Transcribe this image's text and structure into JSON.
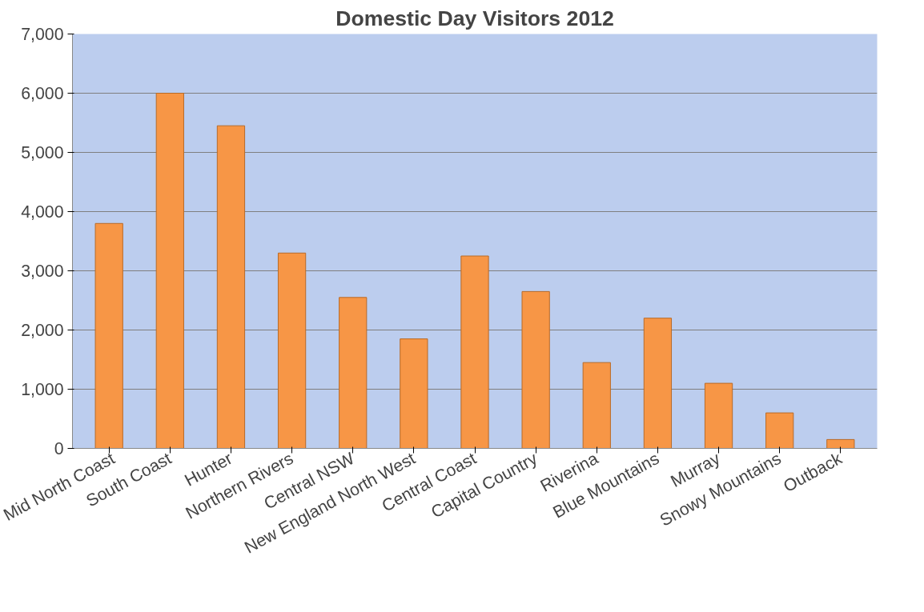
{
  "chart_data": {
    "type": "bar",
    "title": "Domestic Day Visitors 2012",
    "categories": [
      "Mid North Coast",
      "South Coast",
      "Hunter",
      "Northern Rivers",
      "Central NSW",
      "New England North West",
      "Central Coast",
      "Capital Country",
      "Riverina",
      "Blue Mountains",
      "Murray",
      "Snowy Mountains",
      "Outback"
    ],
    "values": [
      3800,
      6000,
      5450,
      3300,
      2550,
      1850,
      3250,
      2650,
      1450,
      2200,
      1100,
      600,
      150
    ],
    "color": "#f79646",
    "ylim": [
      0,
      7000
    ],
    "yticks": [
      0,
      {
        "value": 1000,
        "label": "1,000"
      },
      {
        "value": 2000,
        "label": "2,000"
      },
      {
        "value": 3000,
        "label": "3,000"
      },
      {
        "value": 4000,
        "label": "4,000"
      },
      {
        "value": 5000,
        "label": "5,000"
      },
      {
        "value": 6000,
        "label": "6,000"
      },
      {
        "value": 7000,
        "label": "7,000"
      }
    ],
    "grid": "y"
  }
}
